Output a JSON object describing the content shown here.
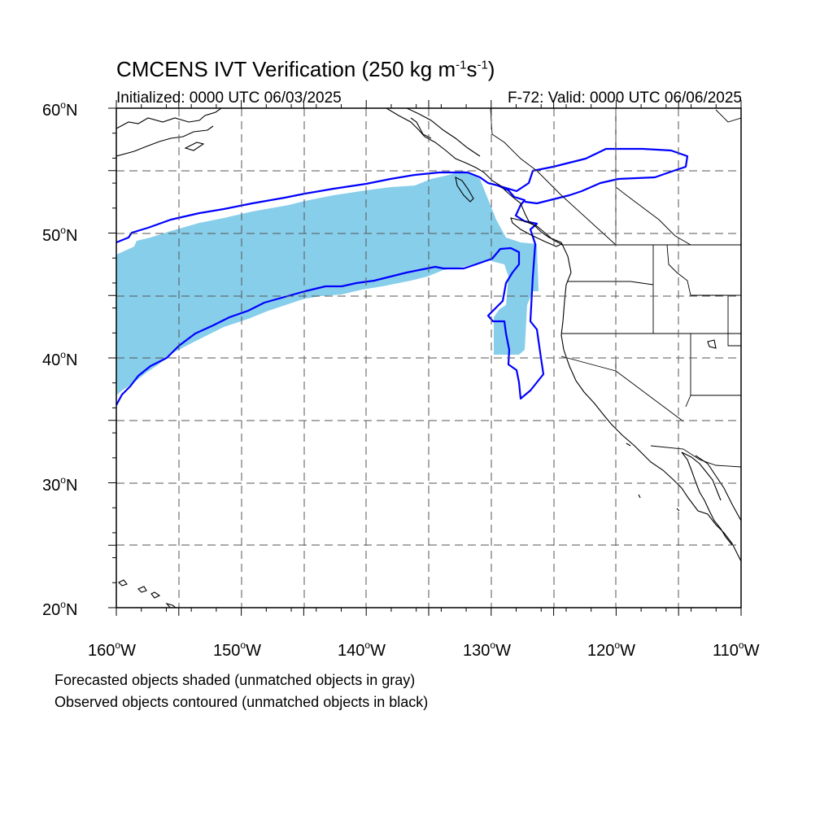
{
  "title": {
    "main": "CMCENS IVT Verification (250 kg m",
    "exp1": "-1",
    "mid": "s",
    "exp2": "-1",
    "close": ")"
  },
  "subtitle": {
    "left": "Initialized: 0000 UTC 06/03/2025",
    "right": "F-72: Valid: 0000 UTC 06/06/2025"
  },
  "map": {
    "projection": "cylindrical equidistant",
    "lon_range": [
      -160,
      -110
    ],
    "lat_range": [
      20,
      60
    ],
    "lat_labels": [
      "20",
      "30",
      "40",
      "50",
      "60"
    ],
    "lat_suffix": "N",
    "lon_labels": [
      "160",
      "150",
      "140",
      "130",
      "120",
      "110"
    ],
    "lon_suffix": "W",
    "degree": "o",
    "grid": "dashed, every 5 degrees",
    "colors": {
      "forecast_fill": "#87ceeb",
      "observed_contour": "#0000ff",
      "coastline": "#000000",
      "grid": "#555555"
    }
  },
  "footnotes": {
    "line1": "Forecasted objects shaded (unmatched objects in gray)",
    "line2": "Observed objects contoured (unmatched objects in black)"
  }
}
